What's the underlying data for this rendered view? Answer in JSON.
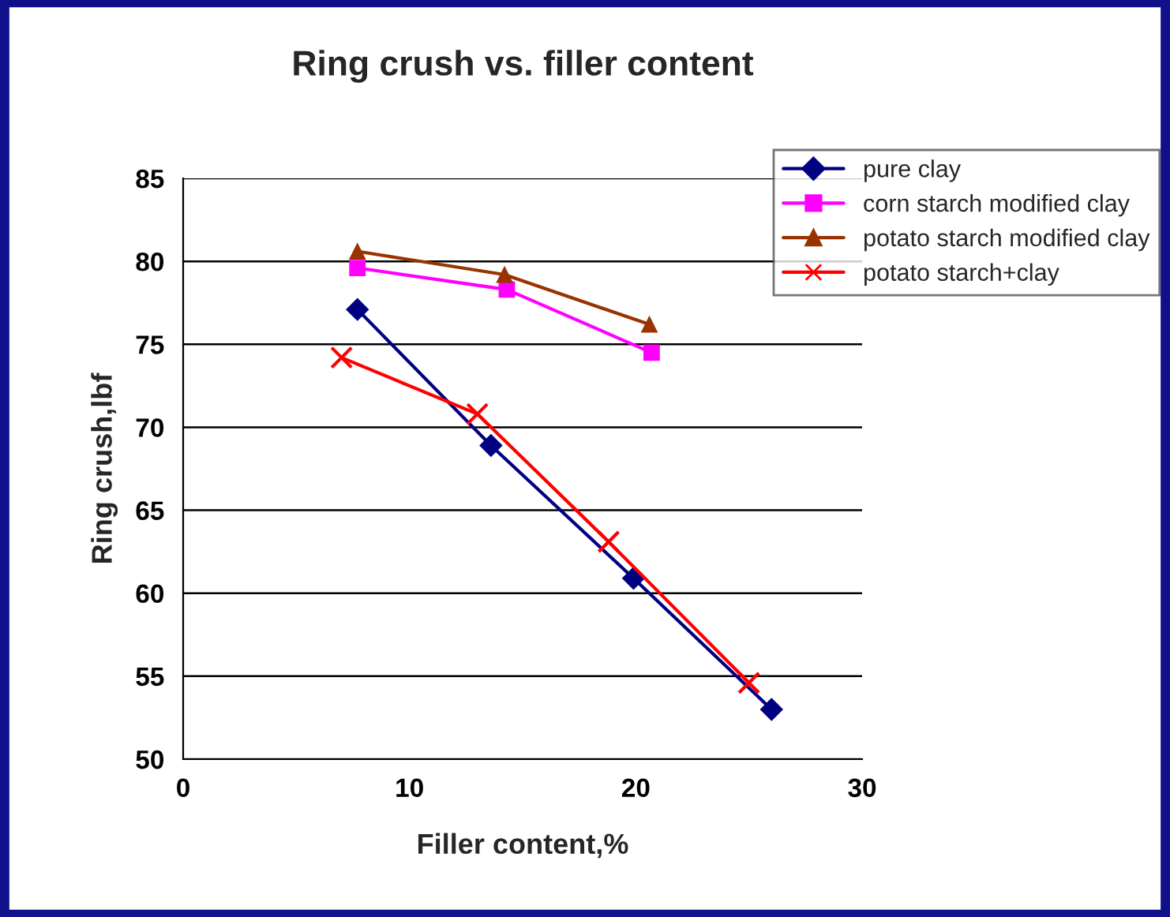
{
  "chart_data": {
    "type": "line",
    "title": "Ring crush vs. filler content",
    "xlabel": "Filler content,%",
    "ylabel": "Ring crush,lbf",
    "xlim": [
      0,
      30
    ],
    "xticks": [
      0,
      10,
      20,
      30
    ],
    "ylim": [
      50,
      85
    ],
    "yticks": [
      50,
      55,
      60,
      65,
      70,
      75,
      80,
      85
    ],
    "grid": "y",
    "legend": "top right",
    "series": [
      {
        "name": "pure clay",
        "color": "#000080",
        "marker": "diamond",
        "x": [
          7.7,
          13.6,
          19.9,
          26.0
        ],
        "values": [
          77.1,
          68.9,
          60.9,
          53.0
        ]
      },
      {
        "name": "corn starch modified clay",
        "color": "#ff00ff",
        "marker": "square",
        "x": [
          7.7,
          14.3,
          20.7
        ],
        "values": [
          79.6,
          78.3,
          74.5
        ]
      },
      {
        "name": "potato starch modified clay",
        "color": "#993300",
        "marker": "triangle",
        "x": [
          7.7,
          14.2,
          20.6
        ],
        "values": [
          80.6,
          79.2,
          76.2
        ]
      },
      {
        "name": "potato starch+clay",
        "color": "#ff0000",
        "marker": "cross",
        "x": [
          7.0,
          13.0,
          18.8,
          25.0
        ],
        "values": [
          74.2,
          70.8,
          63.1,
          54.6
        ]
      }
    ]
  }
}
